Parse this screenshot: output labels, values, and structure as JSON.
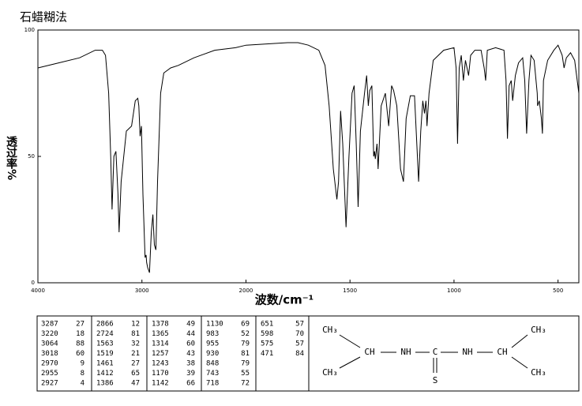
{
  "chart_data": {
    "type": "line",
    "title": "石蜡糊法",
    "ylabel": "透过率%",
    "xlabel": "波数/cm⁻¹",
    "xlim": [
      4000,
      400
    ],
    "xticks": [
      4000,
      3000,
      2000,
      1500,
      1000,
      500
    ],
    "ylim": [
      0,
      100
    ],
    "yticks": [
      0,
      50,
      100
    ],
    "grid": false,
    "color": "#000000",
    "x": [
      4000,
      3800,
      3600,
      3450,
      3380,
      3350,
      3320,
      3300,
      3287,
      3270,
      3250,
      3230,
      3220,
      3200,
      3150,
      3100,
      3064,
      3040,
      3030,
      3018,
      3005,
      2990,
      2970,
      2960,
      2955,
      2945,
      2927,
      2910,
      2895,
      2880,
      2866,
      2850,
      2820,
      2790,
      2724,
      2650,
      2500,
      2300,
      2100,
      2000,
      1800,
      1750,
      1700,
      1650,
      1620,
      1600,
      1580,
      1563,
      1555,
      1545,
      1535,
      1519,
      1505,
      1490,
      1480,
      1470,
      1461,
      1450,
      1430,
      1420,
      1412,
      1405,
      1395,
      1386,
      1382,
      1378,
      1370,
      1365,
      1350,
      1330,
      1314,
      1300,
      1290,
      1275,
      1257,
      1243,
      1230,
      1210,
      1190,
      1170,
      1160,
      1150,
      1142,
      1135,
      1130,
      1120,
      1100,
      1050,
      1000,
      990,
      983,
      975,
      965,
      955,
      945,
      930,
      920,
      900,
      870,
      855,
      848,
      840,
      800,
      760,
      750,
      743,
      735,
      725,
      718,
      705,
      690,
      670,
      660,
      651,
      640,
      630,
      615,
      600,
      598,
      590,
      580,
      575,
      570,
      550,
      520,
      500,
      480,
      471,
      460,
      440,
      420,
      400
    ],
    "values": [
      85,
      87,
      89,
      92,
      92,
      90,
      75,
      50,
      29,
      50,
      52,
      35,
      20,
      40,
      60,
      62,
      72,
      73,
      70,
      58,
      62,
      35,
      10,
      11,
      8,
      6,
      4,
      20,
      27,
      15,
      13,
      40,
      75,
      83,
      85,
      86,
      89,
      92,
      93,
      94,
      95,
      95,
      94,
      92,
      86,
      70,
      45,
      33,
      40,
      68,
      55,
      22,
      50,
      75,
      78,
      55,
      30,
      60,
      75,
      82,
      70,
      76,
      78,
      50,
      52,
      49,
      55,
      45,
      70,
      75,
      62,
      78,
      76,
      70,
      45,
      40,
      65,
      74,
      74,
      40,
      60,
      72,
      67,
      72,
      62,
      75,
      88,
      92,
      93,
      85,
      55,
      85,
      90,
      80,
      88,
      82,
      90,
      92,
      92,
      85,
      80,
      92,
      93,
      92,
      80,
      57,
      78,
      80,
      72,
      82,
      87,
      89,
      80,
      59,
      80,
      90,
      88,
      75,
      70,
      72,
      65,
      59,
      80,
      88,
      92,
      94,
      90,
      85,
      89,
      91,
      88,
      75
    ]
  },
  "peak_table": {
    "columns": [
      [
        [
          3287,
          27
        ],
        [
          3220,
          18
        ],
        [
          3064,
          88
        ],
        [
          3018,
          60
        ],
        [
          2970,
          9
        ],
        [
          2955,
          8
        ],
        [
          2927,
          4
        ]
      ],
      [
        [
          2866,
          12
        ],
        [
          2724,
          81
        ],
        [
          1563,
          32
        ],
        [
          1519,
          21
        ],
        [
          1461,
          27
        ],
        [
          1412,
          65
        ],
        [
          1386,
          47
        ]
      ],
      [
        [
          1378,
          49
        ],
        [
          1365,
          44
        ],
        [
          1314,
          60
        ],
        [
          1257,
          43
        ],
        [
          1243,
          38
        ],
        [
          1170,
          39
        ],
        [
          1142,
          66
        ]
      ],
      [
        [
          1130,
          69
        ],
        [
          983,
          52
        ],
        [
          955,
          79
        ],
        [
          930,
          81
        ],
        [
          848,
          79
        ],
        [
          743,
          55
        ],
        [
          718,
          72
        ]
      ],
      [
        [
          651,
          57
        ],
        [
          598,
          70
        ],
        [
          575,
          57
        ],
        [
          471,
          84
        ]
      ]
    ]
  },
  "structure": {
    "labels": [
      "CH₃",
      "CH",
      "NH",
      "C",
      "NH",
      "CH",
      "CH₃",
      "CH₃",
      "CH₃",
      "S"
    ]
  }
}
